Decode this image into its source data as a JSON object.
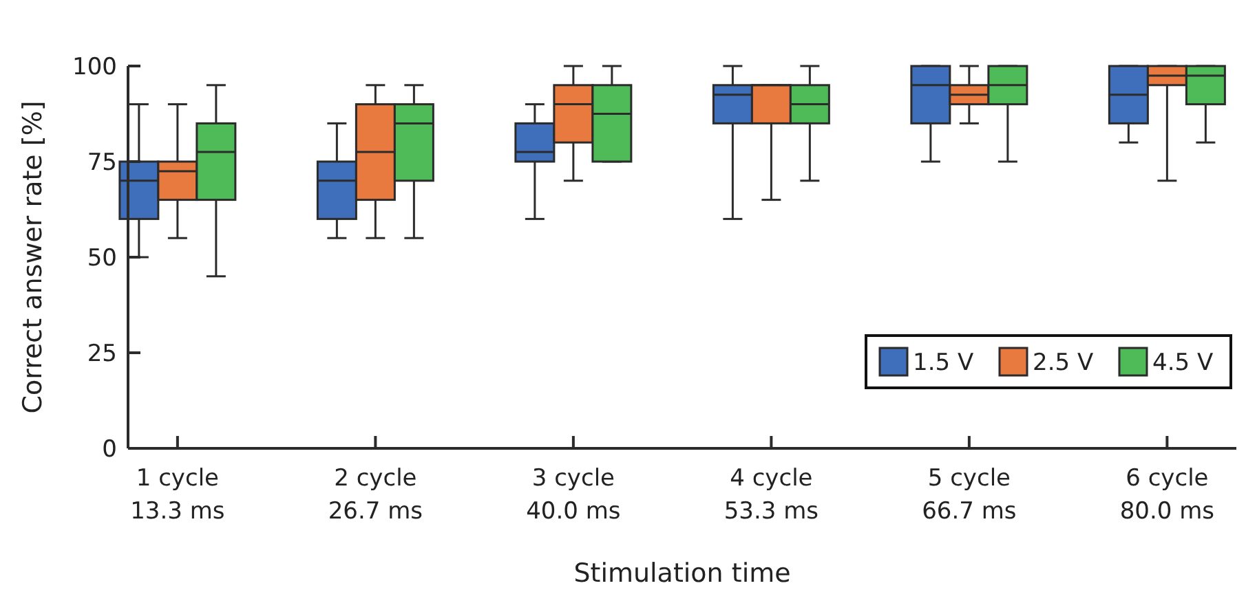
{
  "chart_data": {
    "type": "box",
    "xlabel": "Stimulation time",
    "ylabel": "Correct answer rate [%]",
    "categories": [
      "1 cycle\n13.3 ms",
      "2 cycle\n26.7 ms",
      "3 cycle\n40.0 ms",
      "4 cycle\n53.3 ms",
      "5 cycle\n66.7 ms",
      "6 cycle\n80.0 ms"
    ],
    "ylim": [
      0,
      100
    ],
    "yticks": [
      0,
      25,
      50,
      75,
      100
    ],
    "grid": false,
    "legend": "bottom right",
    "series": [
      {
        "name": "1.5 V",
        "color": "#3f6fba",
        "boxes": [
          {
            "low": 50,
            "q1": 60,
            "median": 70,
            "q3": 75,
            "high": 90
          },
          {
            "low": 55,
            "q1": 60,
            "median": 70,
            "q3": 75,
            "high": 85
          },
          {
            "low": 60,
            "q1": 75,
            "median": 77.5,
            "q3": 85,
            "high": 90
          },
          {
            "low": 60,
            "q1": 85,
            "median": 92.5,
            "q3": 95,
            "high": 100
          },
          {
            "low": 75,
            "q1": 85,
            "median": 95,
            "q3": 100,
            "high": 100
          },
          {
            "low": 80,
            "q1": 85,
            "median": 92.5,
            "q3": 100,
            "high": 100
          }
        ]
      },
      {
        "name": "2.5 V",
        "color": "#e8793f",
        "boxes": [
          {
            "low": 55,
            "q1": 65,
            "median": 72.5,
            "q3": 75,
            "high": 90
          },
          {
            "low": 55,
            "q1": 65,
            "median": 77.5,
            "q3": 90,
            "high": 95
          },
          {
            "low": 70,
            "q1": 80,
            "median": 90,
            "q3": 95,
            "high": 100
          },
          {
            "low": 65,
            "q1": 85,
            "median": 95,
            "q3": 95,
            "high": 95
          },
          {
            "low": 85,
            "q1": 90,
            "median": 92.5,
            "q3": 95,
            "high": 100
          },
          {
            "low": 70,
            "q1": 95,
            "median": 97.5,
            "q3": 100,
            "high": 100
          }
        ]
      },
      {
        "name": "4.5 V",
        "color": "#4fba58",
        "boxes": [
          {
            "low": 45,
            "q1": 65,
            "median": 77.5,
            "q3": 85,
            "high": 95
          },
          {
            "low": 55,
            "q1": 70,
            "median": 85,
            "q3": 90,
            "high": 95
          },
          {
            "low": 75,
            "q1": 75,
            "median": 87.5,
            "q3": 95,
            "high": 100
          },
          {
            "low": 70,
            "q1": 85,
            "median": 90,
            "q3": 95,
            "high": 100
          },
          {
            "low": 75,
            "q1": 90,
            "median": 95,
            "q3": 100,
            "high": 100
          },
          {
            "low": 80,
            "q1": 90,
            "median": 97.5,
            "q3": 100,
            "high": 100
          }
        ]
      }
    ]
  }
}
